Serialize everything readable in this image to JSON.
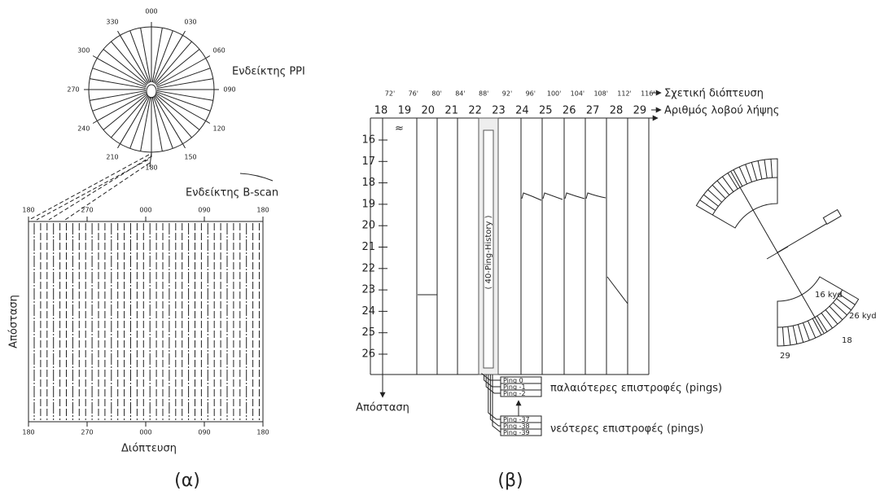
{
  "panel_a": {
    "ppi_label": "Ενδείκτης PPI",
    "ppi_bearings": [
      "000",
      "030",
      "060",
      "090",
      "120",
      "150",
      "180",
      "210",
      "240",
      "270",
      "300",
      "330"
    ],
    "bscan_label": "Ενδείκτης B-scan",
    "bscan_top_ticks": [
      "180",
      "270",
      "000",
      "090",
      "180"
    ],
    "bscan_bottom_ticks": [
      "180",
      "270",
      "000",
      "090",
      "180"
    ],
    "y_axis_label": "Απόσταση",
    "x_axis_label": "Διόπτευση",
    "caption": "(α)"
  },
  "panel_b": {
    "relative_bearings": [
      "72'",
      "76'",
      "80'",
      "84'",
      "88'",
      "92'",
      "96'",
      "100'",
      "104'",
      "108'",
      "112'",
      "116'"
    ],
    "relative_bearing_label": "Σχετική διόπτευση",
    "beam_numbers": [
      "18",
      "19",
      "20",
      "21",
      "22",
      "23",
      "24",
      "25",
      "26",
      "27",
      "28",
      "29"
    ],
    "beam_number_label": "Αριθμός λοβού λήψης",
    "range_break": "≈",
    "ranges": [
      "16",
      "17",
      "18",
      "19",
      "20",
      "21",
      "22",
      "23",
      "24",
      "25",
      "26"
    ],
    "range_label": "Απόσταση",
    "history_label": "( 40-Ping-History )",
    "old_pings": [
      "Ping 0",
      "Ping -1",
      "Ping -2"
    ],
    "old_pings_label": "παλαιότερες επιστροφές (pings)",
    "new_pings": [
      "Ping -37",
      "Ping -38",
      "Ping -39"
    ],
    "new_pings_label": "νεότερες επιστροφές (pings)",
    "sector_labels": [
      "16 kyd",
      "26 kyd",
      "18",
      "29"
    ],
    "caption": "(β)"
  }
}
